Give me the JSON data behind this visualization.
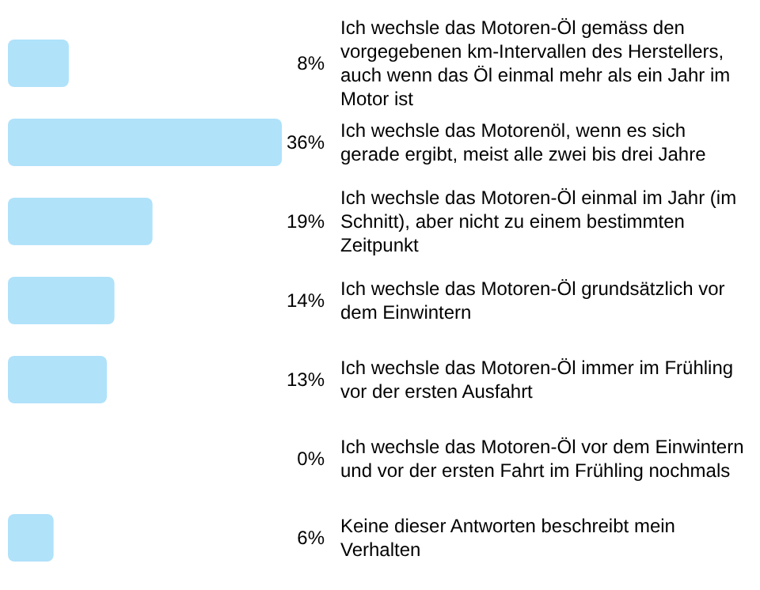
{
  "chart_data": {
    "type": "bar",
    "orientation": "horizontal",
    "color": "#b0e2fa",
    "categories": [
      "Ich wechsle das Motoren-Öl gemäss den vorgegebenen km-Intervallen des Herstellers, auch wenn das Öl einmal mehr als ein Jahr im Motor ist",
      "Ich wechsle das Motorenöl, wenn es sich gerade ergibt, meist alle zwei bis drei Jahre",
      "Ich wechsle das Motoren-Öl einmal im Jahr (im Schnitt), aber nicht zu einem bestimmten Zeitpunkt",
      "Ich wechsle das Motoren-Öl grundsätzlich vor dem Einwintern",
      "Ich wechsle das Motoren-Öl immer im Frühling vor der ersten Ausfahrt",
      "Ich wechsle das Motoren-Öl vor dem Einwintern und vor der ersten Fahrt im Frühling nochmals",
      "Keine dieser Antworten beschreibt mein Verhalten"
    ],
    "values": [
      8,
      36,
      19,
      14,
      13,
      0,
      6
    ],
    "value_labels": [
      "8%",
      "36%",
      "19%",
      "14%",
      "13%",
      "0%",
      "6%"
    ]
  }
}
